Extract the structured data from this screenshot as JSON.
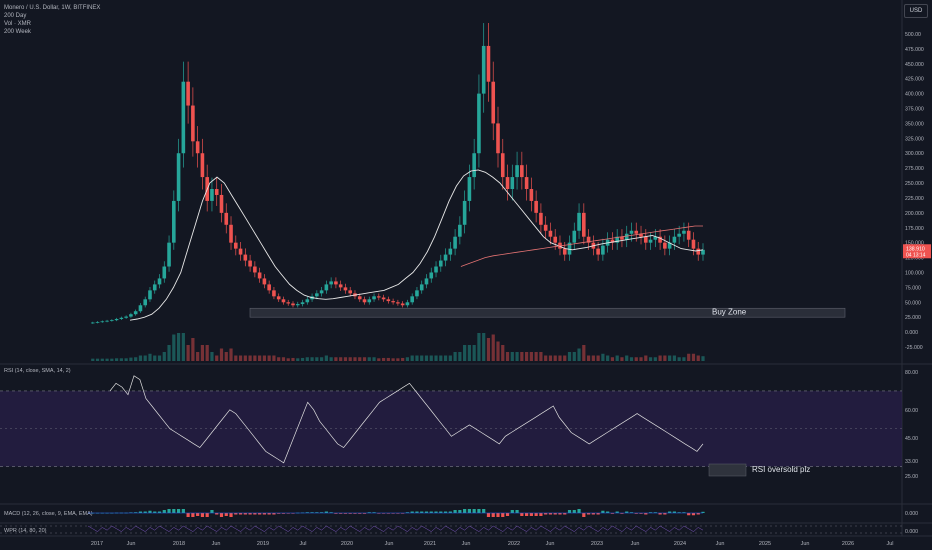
{
  "header": {
    "symbol_line": "Monero / U.S. Dollar, 1W, BITFINEX",
    "indicators": [
      "200 Day",
      "Vol · XMR",
      "200 Week"
    ],
    "currency": "USD"
  },
  "price_axis": {
    "ticks": [
      "500.00",
      "475.000",
      "450.000",
      "425.000",
      "400.000",
      "375.000",
      "350.000",
      "325.000",
      "300.000",
      "275.000",
      "250.000",
      "225.000",
      "200.000",
      "175.000",
      "150.000",
      "125.000",
      "100.000",
      "75.000",
      "50.000",
      "25.000",
      "0.000",
      "-25.000"
    ],
    "last_price": "138.910",
    "countdown": "04 13:14"
  },
  "annotations": {
    "buy_zone": "Buy Zone",
    "rsi_note": "RSI oversold plz"
  },
  "rsi_panel": {
    "label": "RSI (14, close, SMA, 14, 2)",
    "ticks": [
      "80.00",
      "60.00",
      "45.00",
      "33.00",
      "25.00"
    ]
  },
  "macd_panel": {
    "label": "MACD (12, 26, close, 9, EMA, EMA)",
    "tick": "0.000"
  },
  "wpr_panel": {
    "label": "WPR (14, 80, 20)",
    "tick": "0.000"
  },
  "time_axis": [
    "2017",
    "Jun",
    "2018",
    "Jun",
    "2019",
    "Jul",
    "2020",
    "Jun",
    "2021",
    "Jun",
    "2022",
    "Jun",
    "2023",
    "Jun",
    "2024",
    "Jun",
    "2025",
    "Jun",
    "2026",
    "Jul"
  ],
  "colors": {
    "background": "#131722",
    "up": "#26a69a",
    "down": "#ef5350",
    "sma_line": "#e8e8e8",
    "week_sma": "#e57373",
    "rsi_band": "#2a1f4a",
    "rsi_line": "#e0e0e0"
  },
  "chart_data": {
    "type": "candlestick",
    "price_series_weekly_close": [
      15,
      16,
      17,
      18,
      19,
      20,
      22,
      24,
      26,
      30,
      35,
      45,
      55,
      70,
      80,
      90,
      110,
      150,
      220,
      300,
      420,
      380,
      320,
      300,
      260,
      220,
      240,
      230,
      200,
      180,
      150,
      140,
      130,
      120,
      110,
      100,
      90,
      80,
      70,
      60,
      55,
      50,
      48,
      45,
      47,
      50,
      55,
      60,
      65,
      70,
      80,
      85,
      80,
      75,
      70,
      65,
      60,
      55,
      50,
      55,
      60,
      58,
      55,
      52,
      50,
      48,
      45,
      50,
      60,
      70,
      80,
      90,
      100,
      110,
      120,
      130,
      140,
      160,
      180,
      220,
      260,
      300,
      400,
      480,
      420,
      350,
      300,
      260,
      240,
      260,
      280,
      260,
      240,
      220,
      200,
      180,
      170,
      160,
      150,
      140,
      130,
      150,
      170,
      200,
      160,
      150,
      140,
      130,
      145,
      155,
      150,
      160,
      155,
      165,
      170,
      165,
      160,
      150,
      155,
      160,
      150,
      140,
      150,
      160,
      165,
      170,
      155,
      140,
      130,
      138
    ],
    "rsi_series": [
      70,
      74,
      72,
      68,
      78,
      76,
      66,
      62,
      58,
      54,
      50,
      48,
      46,
      44,
      42,
      40,
      44,
      48,
      52,
      56,
      60,
      58,
      54,
      50,
      46,
      42,
      38,
      36,
      34,
      32,
      40,
      48,
      56,
      64,
      60,
      54,
      50,
      46,
      42,
      40,
      44,
      48,
      52,
      56,
      60,
      64,
      66,
      68,
      70,
      72,
      74,
      70,
      66,
      62,
      58,
      54,
      50,
      46,
      48,
      50,
      52,
      50,
      48,
      46,
      44,
      42,
      46,
      48,
      50,
      52,
      54,
      56,
      58,
      60,
      62,
      56,
      52,
      48,
      46,
      44,
      42,
      44,
      46,
      48,
      50,
      52,
      54,
      56,
      58,
      56,
      54,
      52,
      50,
      48,
      46,
      44,
      42,
      40,
      38,
      42
    ],
    "sma200d_series": [
      20,
      22,
      25,
      30,
      40,
      55,
      75,
      100,
      140,
      180,
      220,
      250,
      260,
      250,
      230,
      210,
      190,
      170,
      150,
      130,
      110,
      95,
      80,
      70,
      62,
      58,
      56,
      55,
      56,
      58,
      60,
      62,
      64,
      66,
      68,
      70,
      75,
      80,
      90,
      100,
      115,
      135,
      160,
      190,
      220,
      245,
      262,
      270,
      272,
      268,
      260,
      250,
      235,
      220,
      205,
      190,
      175,
      160,
      150,
      145,
      140,
      138,
      140,
      142,
      145,
      148,
      150,
      152,
      154,
      156,
      158,
      160,
      162,
      158,
      152,
      146,
      140,
      138,
      136,
      138
    ],
    "sma200w_series": [
      null,
      null,
      null,
      null,
      null,
      null,
      null,
      null,
      null,
      null,
      null,
      null,
      null,
      null,
      null,
      null,
      null,
      null,
      null,
      null,
      null,
      null,
      null,
      null,
      null,
      null,
      null,
      null,
      null,
      null,
      null,
      null,
      null,
      null,
      null,
      null,
      null,
      null,
      null,
      null,
      null,
      110,
      115,
      120,
      125,
      128,
      130,
      132,
      134,
      136,
      138,
      140,
      142,
      144,
      146,
      148,
      150,
      152,
      154,
      156,
      158,
      160,
      162,
      164,
      166,
      168,
      170,
      172,
      174,
      176,
      178,
      178
    ],
    "buy_zone_range": [
      25,
      40
    ],
    "rsi_levels": [
      70,
      30
    ]
  }
}
